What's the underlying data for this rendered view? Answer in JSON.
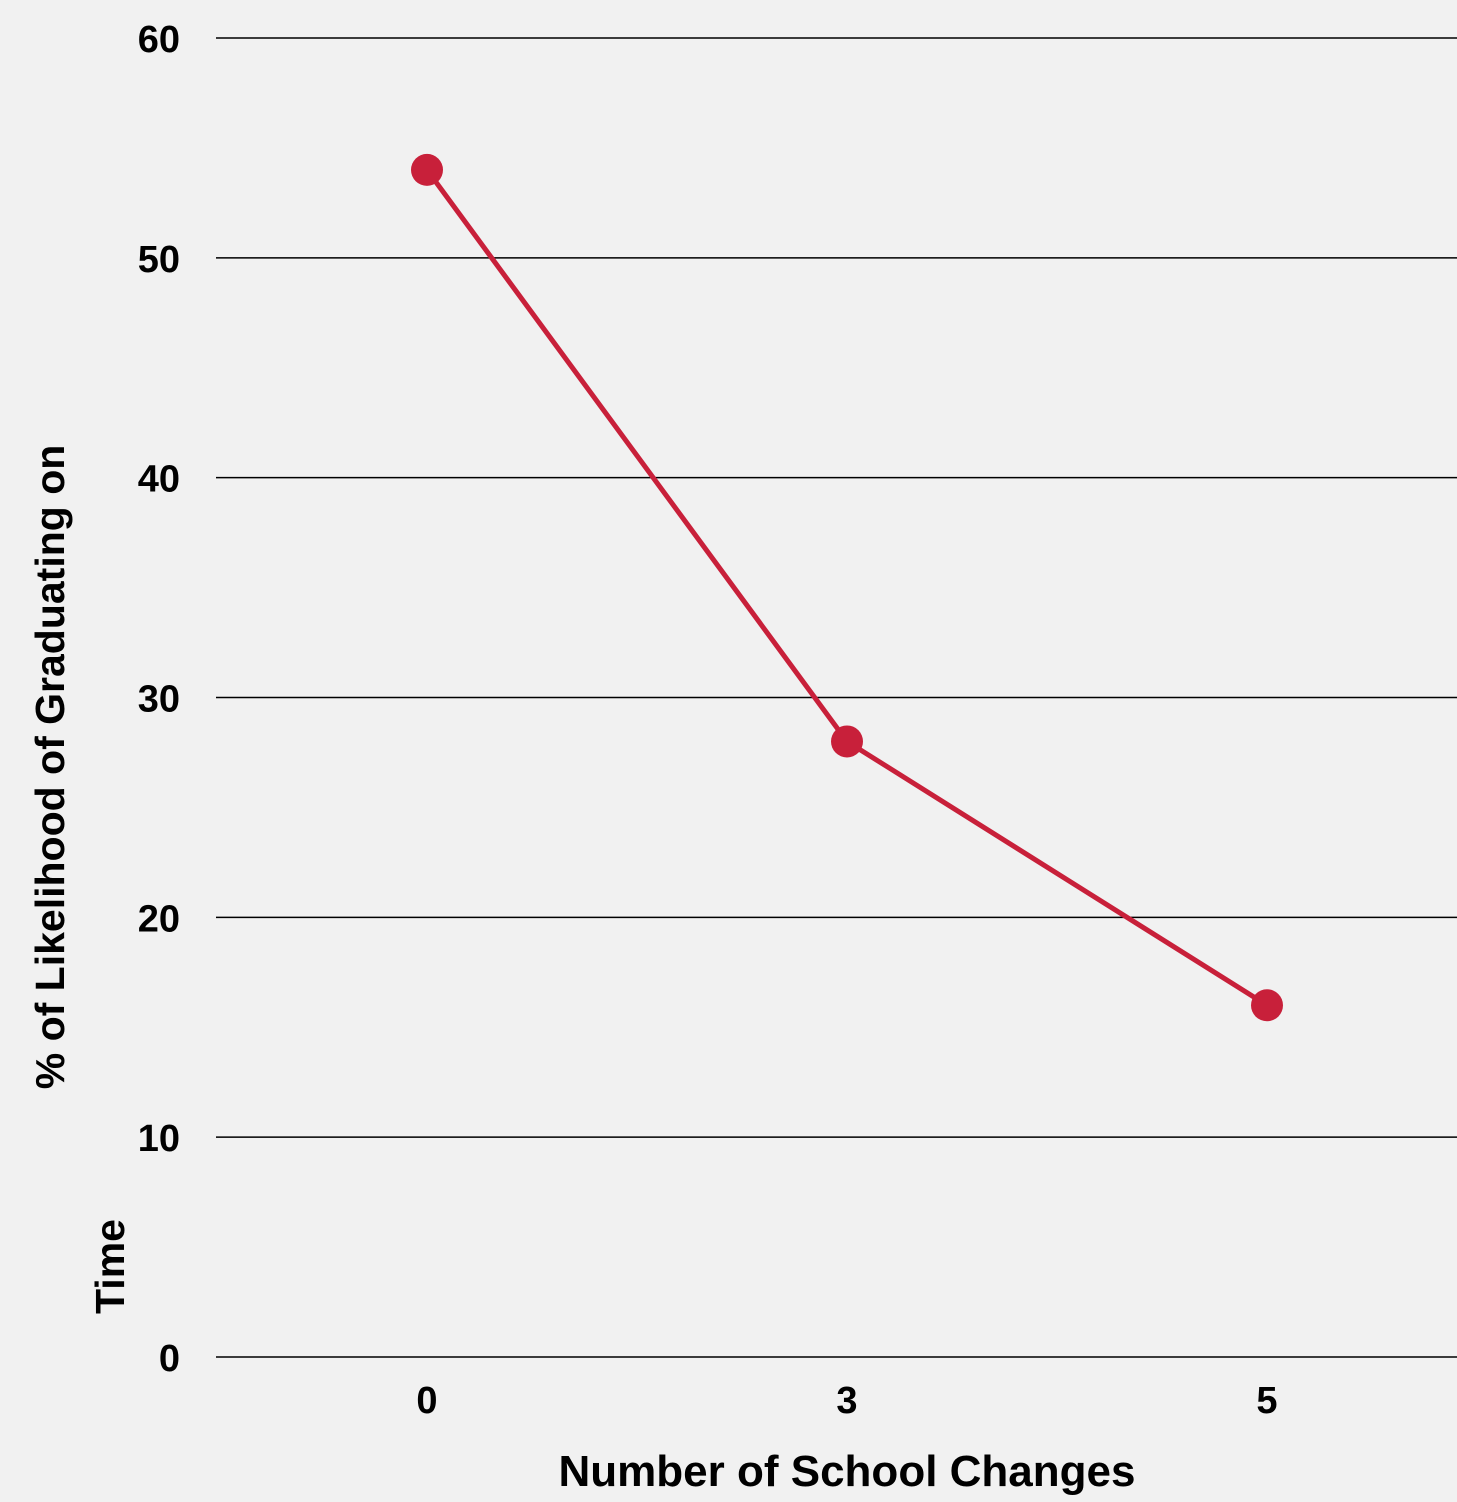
{
  "chart_data": {
    "type": "line",
    "title": "",
    "xlabel": "Number of School Changes",
    "ylabel_lines": [
      "% of Likelihood of Graduating on",
      "Time"
    ],
    "categories": [
      "0",
      "3",
      "5"
    ],
    "series": [
      {
        "values": [
          54,
          28,
          16
        ],
        "color": "#c8203a"
      }
    ],
    "y_ticks": [
      "0",
      "10",
      "20",
      "30",
      "40",
      "50",
      "60"
    ],
    "ylim": [
      0,
      60
    ],
    "grid": true,
    "legend": "none",
    "colors": {
      "background": "#f1f1f1",
      "gridline": "#000000",
      "text": "#000000"
    }
  }
}
